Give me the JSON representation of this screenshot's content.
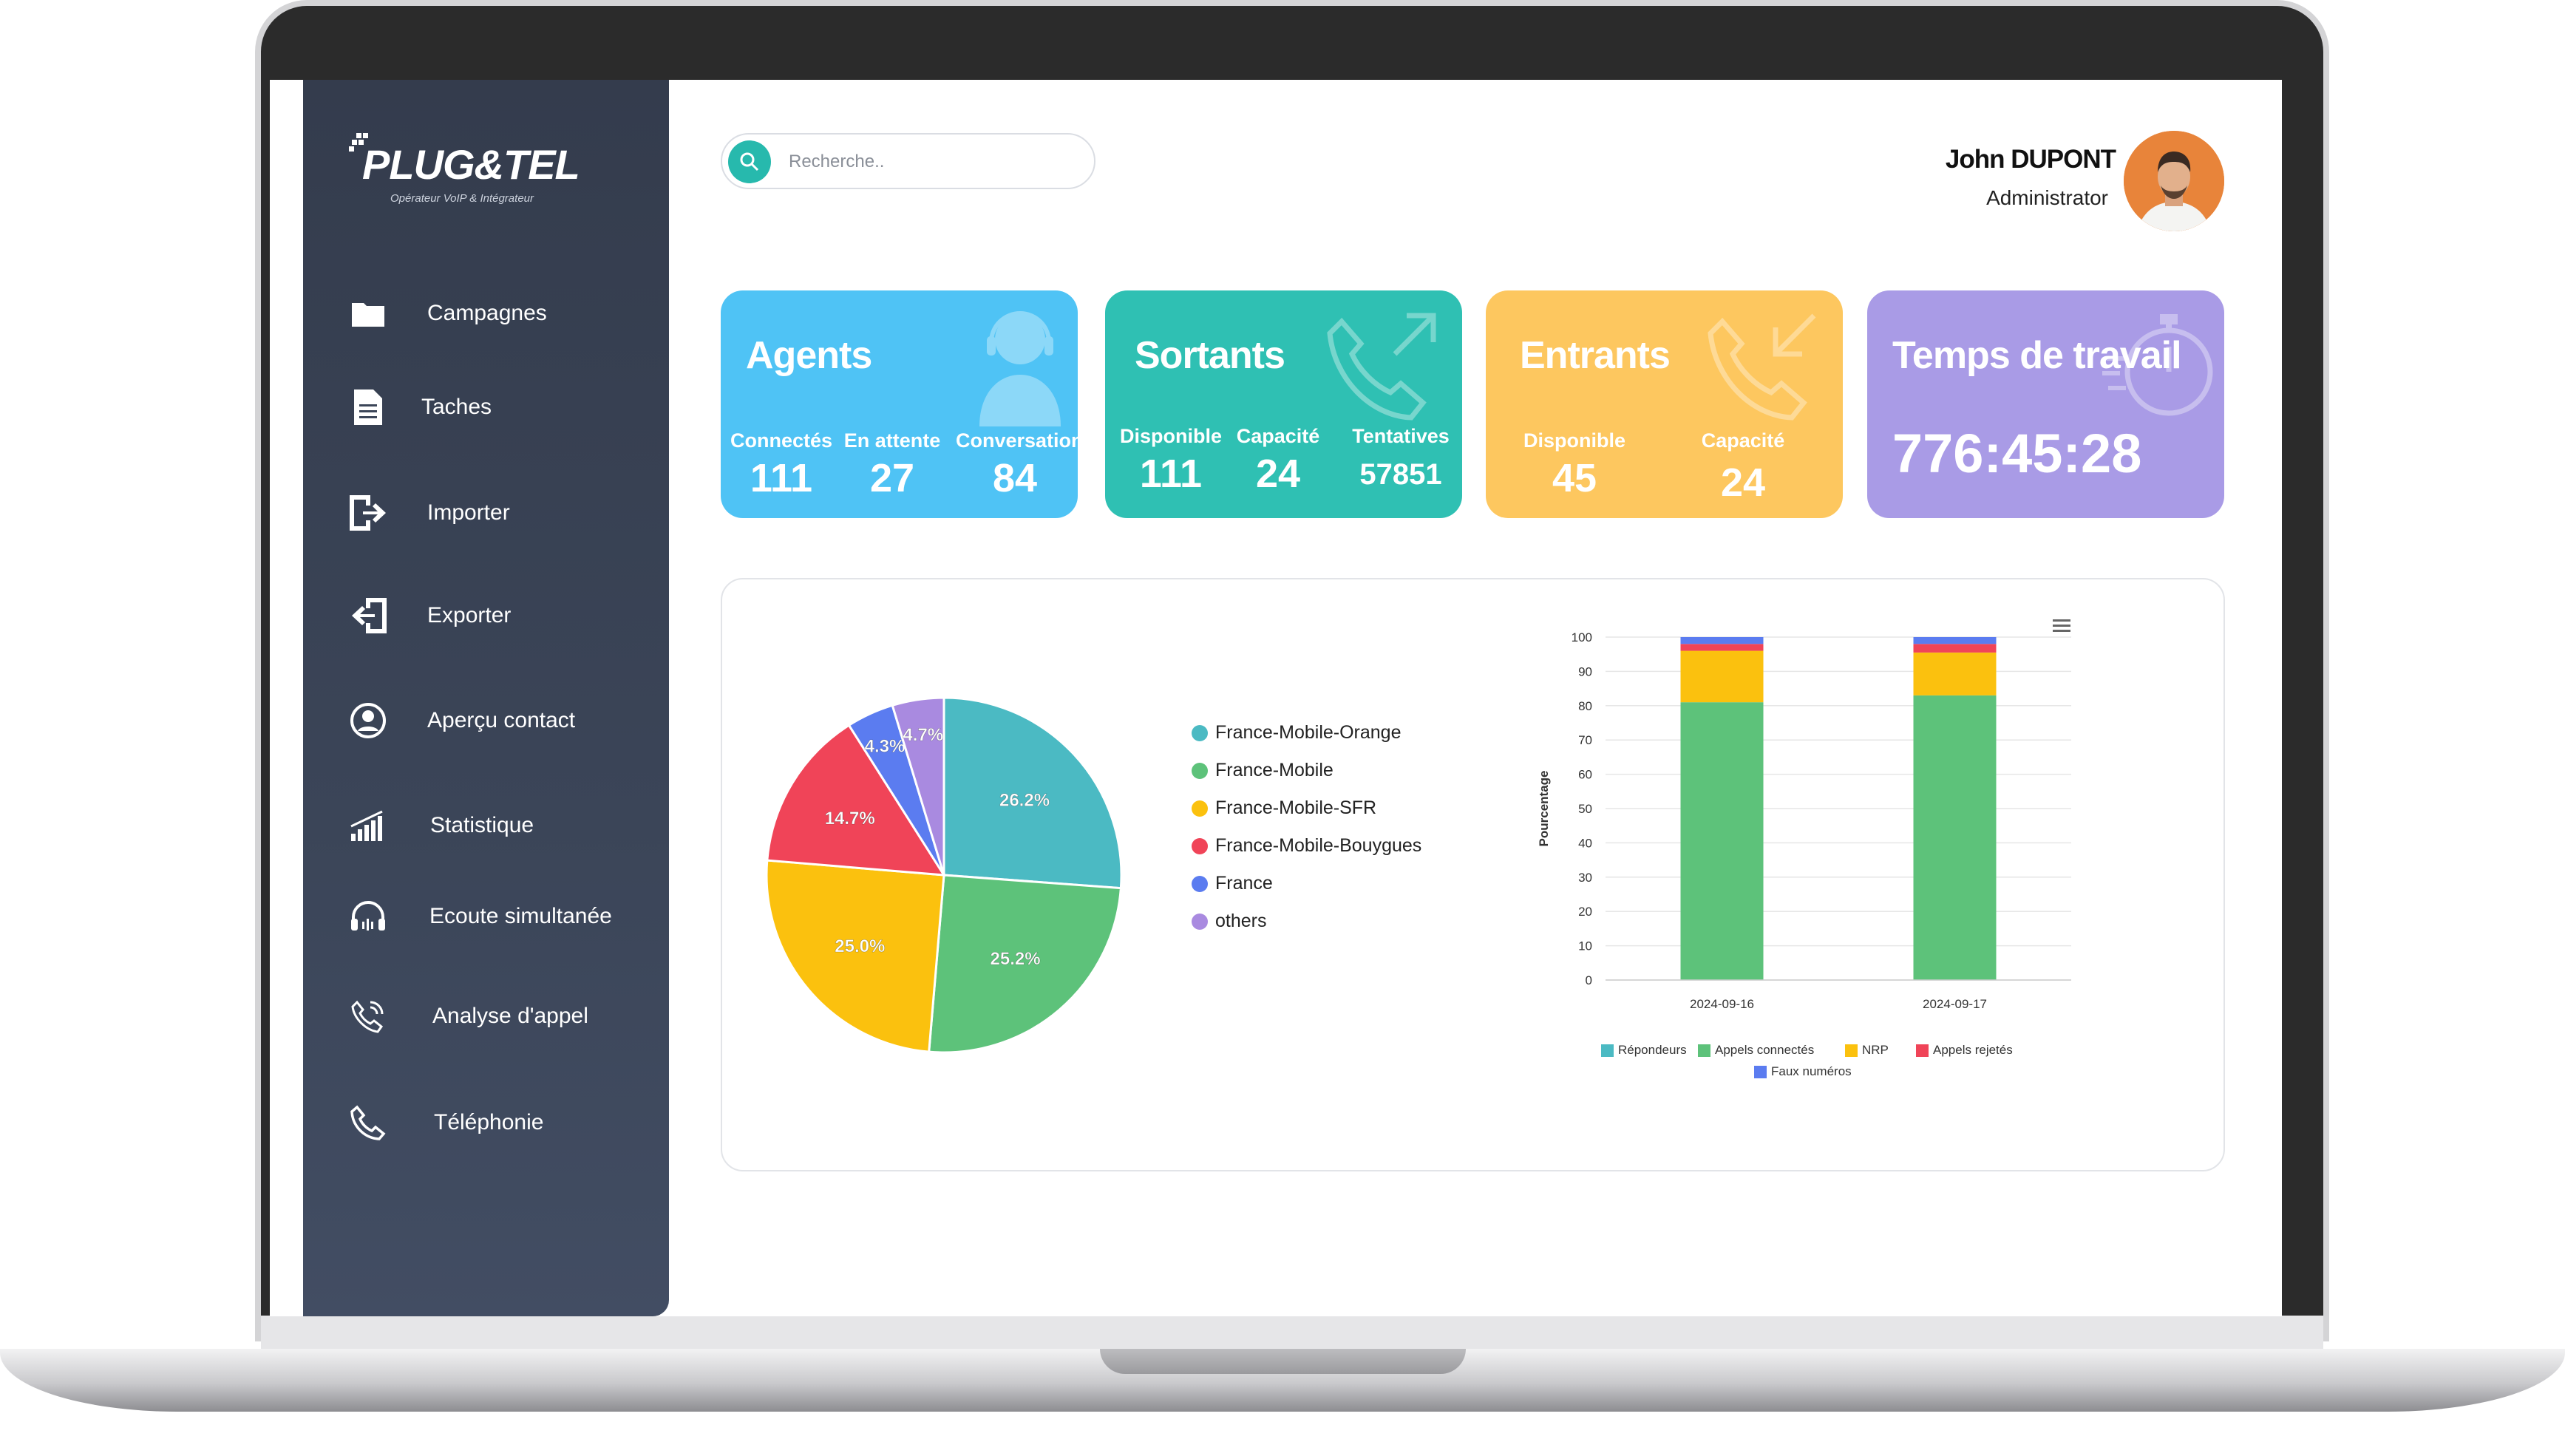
{
  "brand": {
    "name": "PLUG&TEL",
    "tagline": "Opérateur VoIP & Intégrateur"
  },
  "search": {
    "placeholder": "Recherche.."
  },
  "user": {
    "name": "John DUPONT",
    "role": "Administrator"
  },
  "sidebar": {
    "items": [
      {
        "label": "Campagnes",
        "icon": "folder-icon"
      },
      {
        "label": "Taches",
        "icon": "document-icon"
      },
      {
        "label": "Importer",
        "icon": "import-icon"
      },
      {
        "label": "Exporter",
        "icon": "export-icon"
      },
      {
        "label": "Aperçu contact",
        "icon": "user-circle-icon"
      },
      {
        "label": "Statistique",
        "icon": "bar-chart-icon"
      },
      {
        "label": "Ecoute simultanée",
        "icon": "headphones-icon"
      },
      {
        "label": "Analyse d'appel",
        "icon": "phone-analysis-icon"
      },
      {
        "label": "Téléphonie",
        "icon": "phone-icon"
      }
    ]
  },
  "cards": {
    "agents": {
      "title": "Agents",
      "color": "#4fc3f5",
      "stats": [
        {
          "label": "Connectés",
          "value": "111"
        },
        {
          "label": "En attente",
          "value": "27"
        },
        {
          "label": "Conversation",
          "value": "84"
        }
      ]
    },
    "sortants": {
      "title": "Sortants",
      "color": "#2fc0b3",
      "stats": [
        {
          "label": "Disponible",
          "value": "111"
        },
        {
          "label": "Capacité",
          "value": "24"
        },
        {
          "label": "Tentatives",
          "value": "57851"
        }
      ]
    },
    "entrants": {
      "title": "Entrants",
      "color": "#fdc75f",
      "stats": [
        {
          "label": "Disponible",
          "value": "45"
        },
        {
          "label": "Capacité",
          "value": "24"
        }
      ]
    },
    "temps": {
      "title": "Temps de travail",
      "color": "#a99be6",
      "value": "776:45:28"
    }
  },
  "chart_data": [
    {
      "type": "pie",
      "title": "",
      "slices": [
        {
          "label": "France-Mobile-Orange",
          "value": 26.2,
          "color": "#4bbac3",
          "display": "26.2%"
        },
        {
          "label": "France-Mobile",
          "value": 25.2,
          "color": "#5dc27a",
          "display": "25.2%"
        },
        {
          "label": "France-Mobile-SFR",
          "value": 25.0,
          "color": "#fbc10e",
          "display": "25.0%"
        },
        {
          "label": "France-Mobile-Bouygues",
          "value": 14.7,
          "color": "#f04458",
          "display": "14.7%"
        },
        {
          "label": "France",
          "value": 4.3,
          "color": "#5b7cf0",
          "display": "4.3%"
        },
        {
          "label": "others",
          "value": 4.7,
          "color": "#a98ae0",
          "display": "4.7%"
        }
      ]
    },
    {
      "type": "bar",
      "stacked": true,
      "categories": [
        "2024-09-16",
        "2024-09-17"
      ],
      "ylabel": "Pourcentage",
      "ylim": [
        0,
        100
      ],
      "yticks": [
        "0",
        "10",
        "20",
        "30",
        "40",
        "50",
        "60",
        "70",
        "80",
        "90",
        "100"
      ],
      "grid": true,
      "legend_position": "bottom",
      "series": [
        {
          "name": "Répondeurs",
          "color": "#4bbac3",
          "values": [
            0,
            0
          ]
        },
        {
          "name": "Appels connectés",
          "color": "#5dc27a",
          "values": [
            81,
            83
          ]
        },
        {
          "name": "NRP",
          "color": "#fbc10e",
          "values": [
            15,
            12.5
          ]
        },
        {
          "name": "Appels rejetés",
          "color": "#f04458",
          "values": [
            2,
            2.5
          ]
        },
        {
          "name": "Faux numéros",
          "color": "#5b7cf0",
          "values": [
            2,
            2
          ]
        }
      ]
    }
  ]
}
